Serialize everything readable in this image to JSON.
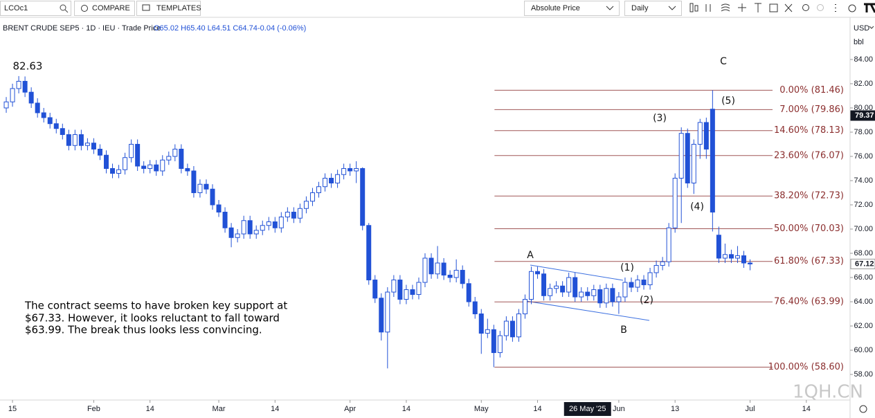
{
  "toolbar": {
    "symbol": "LCOc1",
    "compare": "COMPARE",
    "templates": "TEMPLATES",
    "price_mode": "Absolute Price",
    "interval": "Daily",
    "currency": "USD",
    "unit": "bbl"
  },
  "chart_data": {
    "type": "candlestick",
    "info": "BRENT CRUDE SEP5 · 1D · IEU · Trade Price",
    "ohlc": "O65.02 H65.40 L64.51 C64.74",
    "change": "-0.04 (-0.06%)",
    "color": "#2151d6",
    "open": [
      80.0,
      80.5,
      81.6,
      82.2,
      81.3,
      80.4,
      79.6,
      79.2,
      78.7,
      78.3,
      77.8,
      76.9,
      77.8,
      76.9,
      77.1,
      76.6,
      76.1,
      75.0,
      74.6,
      74.9,
      75.9,
      77.0,
      75.2,
      75.0,
      75.3,
      74.8,
      75.7,
      76.0,
      76.6,
      75.0,
      74.8,
      73.0,
      73.7,
      73.3,
      72.0,
      71.4,
      70.1,
      69.3,
      69.6,
      70.7,
      69.6,
      69.9,
      70.3,
      70.6,
      70.1,
      71.0,
      71.4,
      70.9,
      71.7,
      72.3,
      73.0,
      73.5,
      74.2,
      73.8,
      74.5,
      75.0,
      74.8,
      75.0,
      70.3,
      65.8,
      64.3,
      61.5,
      64.8,
      65.8,
      64.2,
      65.0,
      64.6,
      65.6,
      67.6,
      66.3,
      67.2,
      66.2,
      66.0,
      66.6,
      65.5,
      64.0,
      63.0,
      61.4,
      61.7,
      59.8,
      61.2,
      62.4,
      61.1,
      63.0,
      64.2,
      66.5,
      66.3,
      64.5,
      65.1,
      65.3,
      64.8,
      66.0,
      64.4,
      64.8,
      64.5,
      65.0,
      63.9,
      65.1,
      64.0,
      64.4,
      65.6,
      65.2,
      65.8,
      65.4,
      66.4,
      67.0,
      67.3,
      70.1,
      74.2,
      77.9,
      73.8,
      77.0,
      78.8,
      79.9,
      69.5,
      67.6,
      67.9,
      67.6,
      67.8,
      67.2
    ],
    "high": [
      80.9,
      82.0,
      82.63,
      82.6,
      81.7,
      80.8,
      80.0,
      79.6,
      79.1,
      78.7,
      78.2,
      78.2,
      78.2,
      77.5,
      77.5,
      77.0,
      76.5,
      75.4,
      75.3,
      76.3,
      77.4,
      77.4,
      75.6,
      75.7,
      75.7,
      76.1,
      76.4,
      77.0,
      77.0,
      75.4,
      75.2,
      74.1,
      74.1,
      73.7,
      72.4,
      71.8,
      70.5,
      70.0,
      71.1,
      71.1,
      70.3,
      70.7,
      71.0,
      71.0,
      71.4,
      71.8,
      71.8,
      72.1,
      72.7,
      73.4,
      73.9,
      74.6,
      74.6,
      74.9,
      75.4,
      75.4,
      75.6,
      75.1,
      70.5,
      66.2,
      64.7,
      65.2,
      66.2,
      66.2,
      65.4,
      65.4,
      66.0,
      68.0,
      68.0,
      68.6,
      67.6,
      66.6,
      67.5,
      67.0,
      65.9,
      64.4,
      63.4,
      62.6,
      62.1,
      61.6,
      62.8,
      62.8,
      63.4,
      64.6,
      66.9,
      66.9,
      66.7,
      65.5,
      65.7,
      65.7,
      66.4,
      66.4,
      65.2,
      65.2,
      65.4,
      65.4,
      65.5,
      65.5,
      64.8,
      66.0,
      66.0,
      66.2,
      66.2,
      66.8,
      67.4,
      67.7,
      70.5,
      74.6,
      78.4,
      78.3,
      77.4,
      79.1,
      79.2,
      81.46,
      70.2,
      68.8,
      68.3,
      68.6,
      68.2,
      67.5
    ],
    "low": [
      79.6,
      80.1,
      81.2,
      80.9,
      80.0,
      79.2,
      78.8,
      78.3,
      77.9,
      77.4,
      76.5,
      76.5,
      76.5,
      76.5,
      76.2,
      75.7,
      74.6,
      74.2,
      74.2,
      74.5,
      75.5,
      74.8,
      74.6,
      74.6,
      74.4,
      74.4,
      75.3,
      75.6,
      74.6,
      74.4,
      72.6,
      72.6,
      72.9,
      71.6,
      71.0,
      69.7,
      68.5,
      68.9,
      69.2,
      69.2,
      69.2,
      69.5,
      69.9,
      69.7,
      69.7,
      70.6,
      70.5,
      70.5,
      71.3,
      71.9,
      72.6,
      73.1,
      73.4,
      73.4,
      74.1,
      74.4,
      73.8,
      69.9,
      65.4,
      63.9,
      60.8,
      58.5,
      64.4,
      63.8,
      63.8,
      64.2,
      64.2,
      65.2,
      65.9,
      65.9,
      65.8,
      65.6,
      65.6,
      65.1,
      63.6,
      62.6,
      59.7,
      61.0,
      58.6,
      59.4,
      60.8,
      60.7,
      60.7,
      62.6,
      63.8,
      65.9,
      64.1,
      64.1,
      64.7,
      64.4,
      64.4,
      64.0,
      64.0,
      64.1,
      64.1,
      63.5,
      63.5,
      63.6,
      63.0,
      64.0,
      64.8,
      64.8,
      65.0,
      65.0,
      66.0,
      66.6,
      66.9,
      69.7,
      70.5,
      73.4,
      72.9,
      75.8,
      75.8,
      69.8,
      67.2,
      67.2,
      67.2,
      67.2,
      66.8,
      66.6
    ],
    "close": [
      80.5,
      81.6,
      82.2,
      81.3,
      80.4,
      79.6,
      79.2,
      78.7,
      78.3,
      77.8,
      76.9,
      77.8,
      76.9,
      77.1,
      76.6,
      76.1,
      75.0,
      74.6,
      74.9,
      75.9,
      77.0,
      75.2,
      75.0,
      75.3,
      74.8,
      75.7,
      76.0,
      76.6,
      75.0,
      74.8,
      73.0,
      73.7,
      73.3,
      72.0,
      71.4,
      70.1,
      69.3,
      69.6,
      70.7,
      69.6,
      69.9,
      70.3,
      70.6,
      70.1,
      71.0,
      71.4,
      70.9,
      71.7,
      72.3,
      73.0,
      73.5,
      74.2,
      73.8,
      74.5,
      75.0,
      74.8,
      75.0,
      70.3,
      65.8,
      64.3,
      61.5,
      64.8,
      65.8,
      64.2,
      65.0,
      64.6,
      65.6,
      67.6,
      66.3,
      67.2,
      66.2,
      66.0,
      66.6,
      65.5,
      64.0,
      63.0,
      61.4,
      61.7,
      59.8,
      61.2,
      62.4,
      61.1,
      63.0,
      64.2,
      66.5,
      66.3,
      64.5,
      65.1,
      65.3,
      64.8,
      66.0,
      64.4,
      64.8,
      64.5,
      65.0,
      63.9,
      65.1,
      64.0,
      64.4,
      65.6,
      65.2,
      65.8,
      65.4,
      66.4,
      67.0,
      67.3,
      70.1,
      74.2,
      77.9,
      73.8,
      77.0,
      78.8,
      76.6,
      71.4,
      67.6,
      67.9,
      67.6,
      67.8,
      67.2,
      67.12
    ],
    "xlim": [
      -1,
      135
    ],
    "xticks": [
      {
        "value": 1,
        "label": "15"
      },
      {
        "value": 14,
        "label": "Feb"
      },
      {
        "value": 23,
        "label": "14"
      },
      {
        "value": 34,
        "label": "Mar"
      },
      {
        "value": 43,
        "label": "14"
      },
      {
        "value": 55,
        "label": "Apr"
      },
      {
        "value": 64,
        "label": "14"
      },
      {
        "value": 76,
        "label": "May"
      },
      {
        "value": 85,
        "label": "14"
      },
      {
        "value": 98,
        "label": "Jun"
      },
      {
        "value": 107,
        "label": "13"
      },
      {
        "value": 119,
        "label": "Jul"
      },
      {
        "value": 128,
        "label": "14"
      }
    ],
    "crosshair_date": {
      "value": 93,
      "label": "26 May '25"
    },
    "ylim": [
      55.89,
      87.31
    ],
    "yticks": [
      {
        "value": 58,
        "label": "58.00"
      },
      {
        "value": 60,
        "label": "60.00"
      },
      {
        "value": 62,
        "label": "62.00"
      },
      {
        "value": 64,
        "label": "64.00"
      },
      {
        "value": 66,
        "label": "66.00"
      },
      {
        "value": 68,
        "label": "68.00"
      },
      {
        "value": 70,
        "label": "70.00"
      },
      {
        "value": 72,
        "label": "72.00"
      },
      {
        "value": 74,
        "label": "74.00"
      },
      {
        "value": 76,
        "label": "76.00"
      },
      {
        "value": 78,
        "label": "78.00"
      },
      {
        "value": 80,
        "label": "80.00"
      },
      {
        "value": 82,
        "label": "82.00"
      },
      {
        "value": 84,
        "label": "84.00"
      }
    ],
    "grid": false,
    "price_tags": [
      {
        "value": 79.37,
        "label": "79.37",
        "color": "#131722"
      },
      {
        "value": 67.12,
        "label": "67.12",
        "color": "#ffffff"
      }
    ],
    "fib_color": "#a05656",
    "fib_levels": [
      {
        "value": 81.46,
        "label": "0.00% (81.46)"
      },
      {
        "value": 79.86,
        "label": "7.00% (79.86)"
      },
      {
        "value": 78.13,
        "label": "14.60% (78.13)"
      },
      {
        "value": 76.07,
        "label": "23.60% (76.07)"
      },
      {
        "value": 72.73,
        "label": "38.20% (72.73)"
      },
      {
        "value": 70.03,
        "label": "50.00% (70.03)"
      },
      {
        "value": 67.33,
        "label": "61.80% (67.33)"
      },
      {
        "value": 63.99,
        "label": "76.40% (63.99)"
      },
      {
        "value": 58.6,
        "label": "100.00% (58.60)"
      }
    ],
    "high_marker": {
      "value": 82.63,
      "label": "82.63"
    },
    "wave_labels": [
      "A",
      "B",
      "C",
      "(1)",
      "(2)",
      "(3)",
      "(4)",
      "(5)"
    ],
    "note": [
      "The contract seems to have broken key support at",
      "$67.33. However, it looks reluctant to fall toward",
      "$63.99.  The break thus looks less convincing."
    ],
    "watermark": "1QH.CN"
  }
}
